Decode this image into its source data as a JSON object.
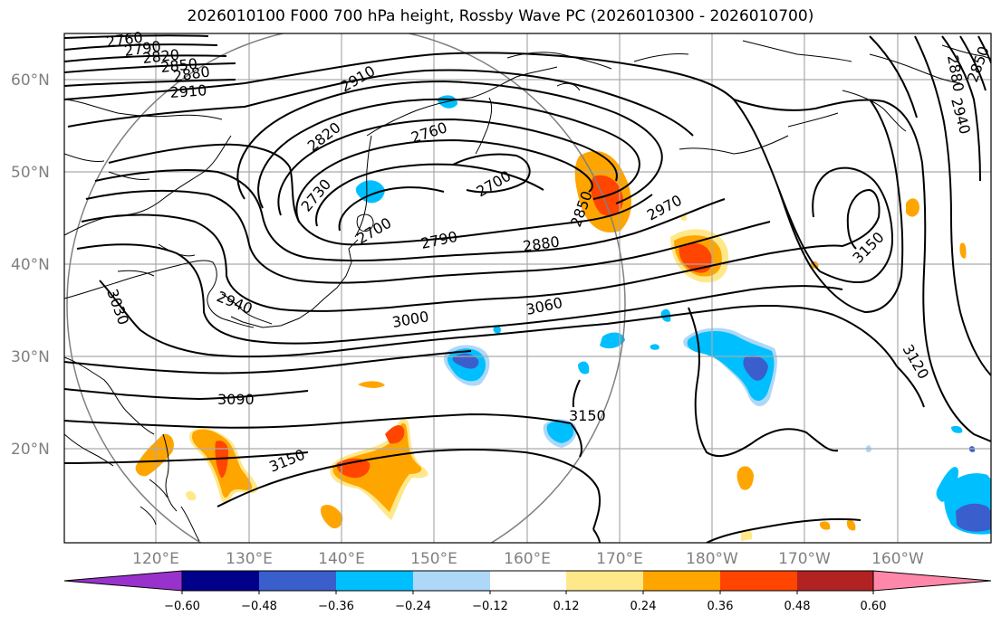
{
  "title": "2026010100 F000 700 hPa height, Rossby Wave PC (2026010300 - 2026010700)",
  "lat_labels": [
    "60°N",
    "50°N",
    "40°N",
    "30°N",
    "20°N"
  ],
  "lon_labels": [
    "120°E",
    "130°E",
    "140°E",
    "150°E",
    "160°E",
    "170°E",
    "180°W",
    "170°W",
    "160°W"
  ],
  "contour_labels": [
    "2760",
    "2790",
    "2820",
    "2850",
    "2880",
    "2910",
    "2910",
    "2820",
    "2760",
    "2730",
    "2700",
    "2790",
    "2700",
    "2850",
    "2790",
    "2880",
    "2970",
    "2940",
    "3000",
    "3060",
    "3030",
    "3090",
    "3150",
    "3150",
    "3150",
    "3120",
    "2880",
    "2850",
    "2940"
  ],
  "colorbar": {
    "ticks": [
      "−0.60",
      "−0.48",
      "−0.36",
      "−0.24",
      "−0.12",
      "0.12",
      "0.24",
      "0.36",
      "0.48",
      "0.60"
    ],
    "colors": [
      "#9932cc",
      "#00008b",
      "#3a5fcd",
      "#00bfff",
      "#add8f8",
      "#ffffff",
      "#ffe88a",
      "#ffa500",
      "#ff4500",
      "#b22222",
      "#ff88aa"
    ]
  },
  "colors": {
    "pos_light": "#ffe88a",
    "pos_mid": "#ffa500",
    "pos_strong": "#ff4500",
    "neg_light": "#add8f8",
    "neg_mid": "#00bfff",
    "neg_strong": "#3a5fcd",
    "grid": "#aaaaaa",
    "contour": "#000000"
  }
}
